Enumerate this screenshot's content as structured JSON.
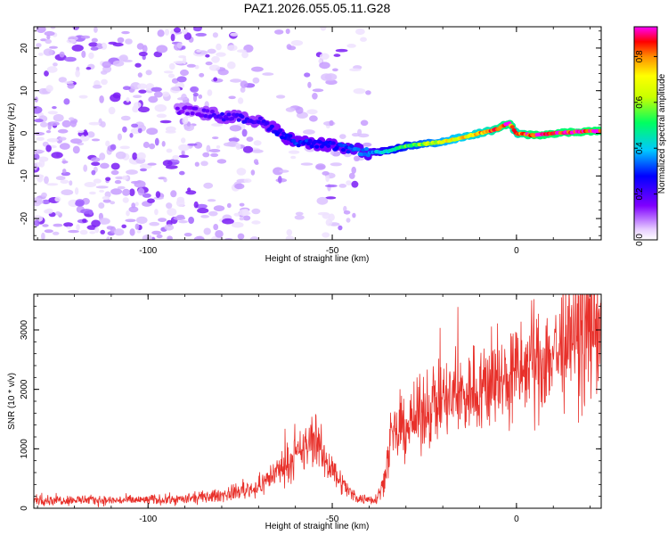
{
  "chart_data": [
    {
      "type": "heatmap",
      "title": "PAZ1.2026.055.05.11.G28",
      "xlabel": "Height of straight line (km)",
      "ylabel": "Frequency (Hz)",
      "xlim": [
        -131,
        23
      ],
      "ylim": [
        -25,
        25
      ],
      "xticks": [
        -100,
        -50,
        0
      ],
      "yticks": [
        -20,
        -10,
        0,
        10,
        20
      ],
      "colorbar": {
        "label": "Normalized spectral amplitude",
        "range": [
          0,
          0.93
        ],
        "ticks": [
          0.0,
          0.2,
          0.4,
          0.6,
          0.8
        ]
      },
      "ridge_frequency_hz": {
        "x": [
          -90,
          -80,
          -70,
          -60,
          -50,
          -40,
          -35,
          -30,
          -20,
          -10,
          -5,
          -2,
          0,
          5,
          10,
          20
        ],
        "y": [
          5.5,
          4,
          3,
          -2,
          -3,
          -4.5,
          -4.3,
          -3,
          -2,
          0,
          1,
          2.5,
          0,
          -0.5,
          0,
          0.5
        ]
      },
      "ridge_amplitude": {
        "x": [
          -90,
          -80,
          -70,
          -60,
          -50,
          -40,
          -35,
          -30,
          -20,
          -10,
          -5,
          -2,
          0,
          5,
          10,
          20
        ],
        "y": [
          0.16,
          0.22,
          0.22,
          0.3,
          0.28,
          0.35,
          0.45,
          0.55,
          0.68,
          0.78,
          0.85,
          0.9,
          0.8,
          0.92,
          0.9,
          0.92
        ]
      }
    },
    {
      "type": "line",
      "xlabel": "Height of straight line (km)",
      "ylabel": "SNR (10 * v/v)",
      "xlim": [
        -131,
        23
      ],
      "ylim": [
        0,
        3600
      ],
      "xticks": [
        -100,
        -50,
        0
      ],
      "yticks": [
        0,
        1000,
        2000,
        3000
      ],
      "series": [
        {
          "name": "SNR",
          "color": "#e8302a",
          "x": [
            -131,
            -120,
            -110,
            -100,
            -90,
            -80,
            -75,
            -70,
            -66,
            -62,
            -58,
            -55,
            -52,
            -48,
            -45,
            -42,
            -38,
            -36,
            -34,
            -30,
            -27,
            -24,
            -20,
            -15,
            -10,
            -5,
            0,
            5,
            10,
            15,
            20,
            23
          ],
          "y": [
            140,
            140,
            130,
            140,
            150,
            220,
            290,
            350,
            580,
            760,
            950,
            1200,
            830,
            480,
            250,
            150,
            160,
            450,
            1150,
            1380,
            1500,
            1720,
            1800,
            1880,
            2050,
            2100,
            2250,
            2450,
            2600,
            2800,
            3000,
            3150
          ]
        }
      ]
    }
  ]
}
